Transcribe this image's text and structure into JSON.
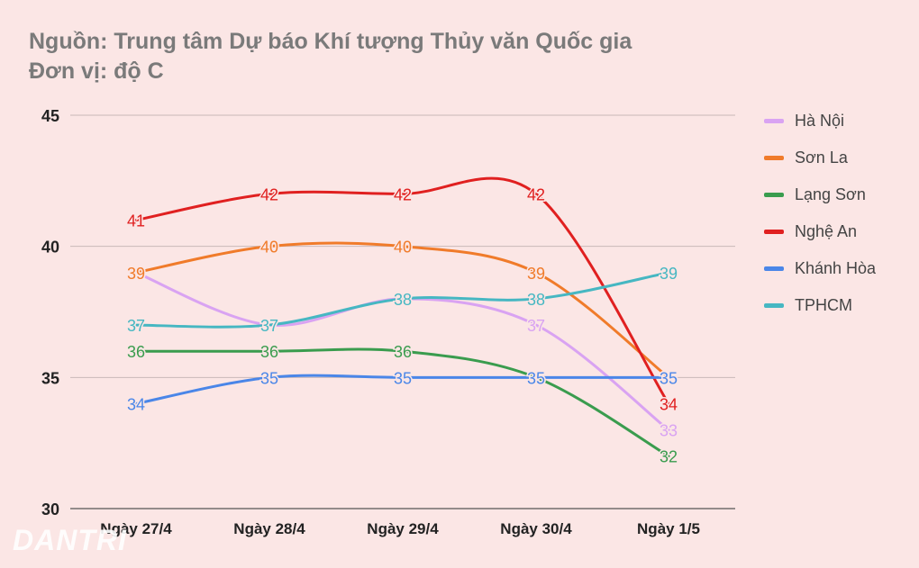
{
  "header": {
    "source": "Nguồn: Trung tâm Dự báo Khí tượng Thủy văn Quốc gia",
    "unit": "Đơn vị: độ C"
  },
  "watermark": "DANTRI",
  "chart_data": {
    "type": "line",
    "categories": [
      "Ngày 27/4",
      "Ngày 28/4",
      "Ngày 29/4",
      "Ngày 30/4",
      "Ngày 1/5"
    ],
    "ylim": [
      30,
      45
    ],
    "yticks": [
      30,
      35,
      40,
      45
    ],
    "grid": true,
    "legend_position": "right",
    "series": [
      {
        "name": "Hà Nội",
        "color": "#d9a3f2",
        "values": [
          39,
          37,
          38,
          37,
          33
        ]
      },
      {
        "name": "Sơn La",
        "color": "#f07b2a",
        "values": [
          39,
          40,
          40,
          39,
          35
        ]
      },
      {
        "name": "Lạng Sơn",
        "color": "#3a9c4e",
        "values": [
          36,
          36,
          36,
          35,
          32
        ]
      },
      {
        "name": "Nghệ An",
        "color": "#e02020",
        "values": [
          41,
          42,
          42,
          42,
          34
        ]
      },
      {
        "name": "Khánh Hòa",
        "color": "#4a86e8",
        "values": [
          34,
          35,
          35,
          35,
          35
        ]
      },
      {
        "name": "TPHCM",
        "color": "#46b7c2",
        "values": [
          37,
          37,
          38,
          38,
          39
        ]
      }
    ]
  }
}
